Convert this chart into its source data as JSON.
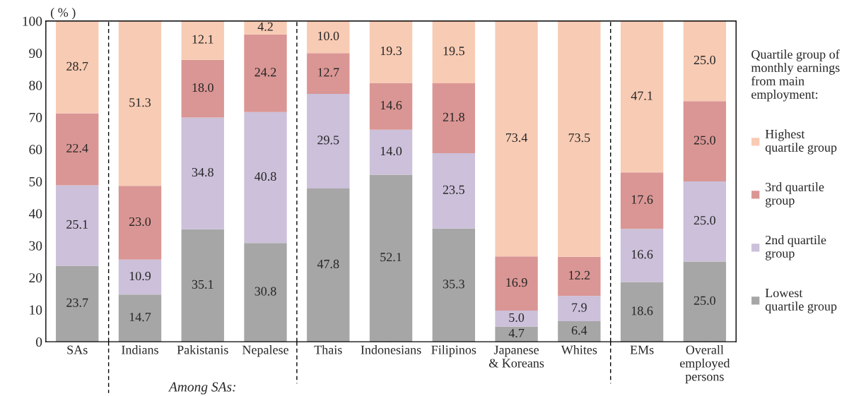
{
  "chart_data": {
    "type": "bar",
    "stacked": true,
    "ylabel": "( % )",
    "legend_title": "Quartile group of\nmonthly earnings\nfrom main\nemployment:",
    "categories": [
      "SAs",
      "Indians",
      "Pakistanis",
      "Nepalese",
      "Thais",
      "Indonesians",
      "Filipinos",
      "Japanese\n& Koreans",
      "Whites",
      "EMs",
      "Overall\nemployed\npersons"
    ],
    "series": [
      {
        "name": "Lowest\nquartile group",
        "color": "#a6a6a6",
        "values": [
          23.7,
          14.7,
          35.1,
          30.8,
          47.8,
          52.1,
          35.3,
          4.7,
          6.4,
          18.6,
          25.0
        ],
        "value_labels": [
          "23.7",
          "14.7",
          "35.1",
          "30.8",
          "47.8",
          "52.1",
          "35.3",
          "4.7",
          "6.4",
          "18.6",
          "25.0"
        ]
      },
      {
        "name": "2nd quartile\ngroup",
        "color": "#ccc0da",
        "values": [
          25.1,
          10.9,
          34.8,
          40.8,
          29.5,
          14.0,
          23.5,
          5.0,
          7.9,
          16.6,
          25.0
        ],
        "value_labels": [
          "25.1",
          "10.9",
          "34.8",
          "40.8",
          "29.5",
          "14.0",
          "23.5",
          "5.0",
          "7.9",
          "16.6",
          "25.0"
        ]
      },
      {
        "name": "3rd quartile\ngroup",
        "color": "#da9694",
        "values": [
          22.4,
          23.0,
          18.0,
          24.2,
          12.7,
          14.6,
          21.8,
          16.9,
          12.2,
          17.6,
          25.0
        ],
        "value_labels": [
          "22.4",
          "23.0",
          "18.0",
          "24.2",
          "12.7",
          "14.6",
          "21.8",
          "16.9",
          "12.2",
          "17.6",
          "25.0"
        ]
      },
      {
        "name": "Highest\nquartile group",
        "color": "#f8cbb4",
        "values": [
          28.7,
          51.3,
          12.1,
          4.2,
          10.0,
          19.3,
          19.5,
          73.4,
          73.5,
          47.1,
          25.0
        ],
        "value_labels": [
          "28.7",
          "51.3",
          "12.1",
          "4.2",
          "10.0",
          "19.3",
          "19.5",
          "73.4",
          "73.5",
          "47.1",
          "25.0"
        ]
      }
    ],
    "ylim": [
      0,
      100
    ],
    "yticks": [
      0,
      10,
      20,
      30,
      40,
      50,
      60,
      70,
      80,
      90,
      100
    ],
    "legend": "right",
    "annotations": [
      "Among SAs:"
    ]
  }
}
